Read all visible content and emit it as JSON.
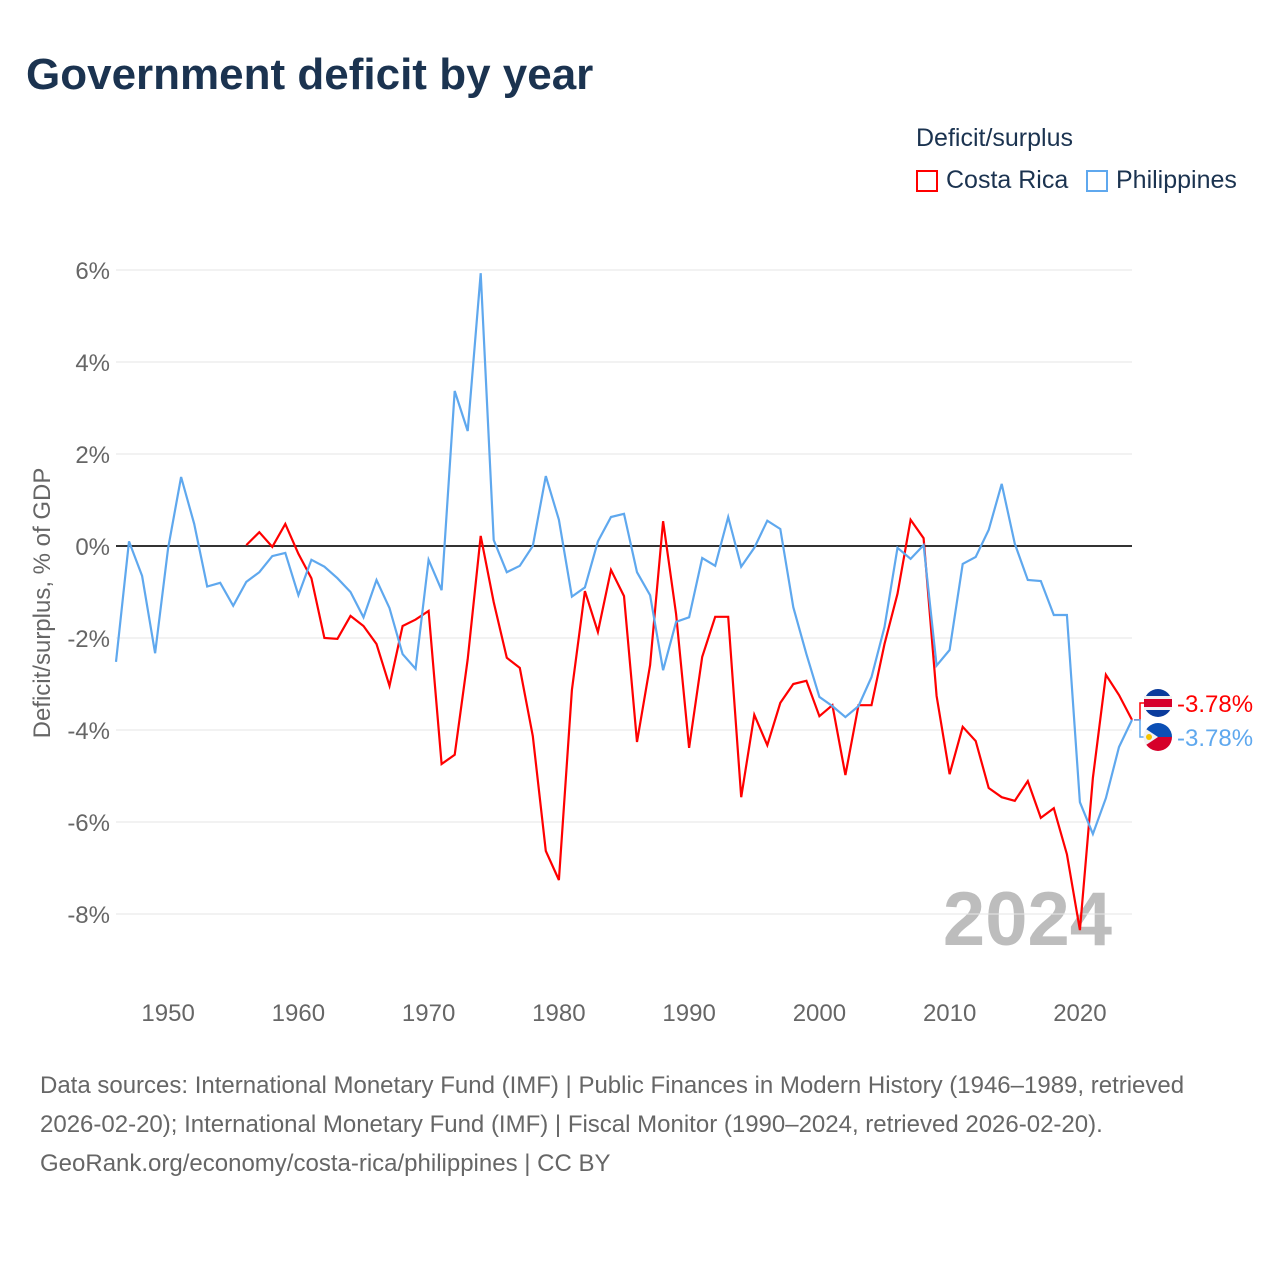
{
  "title": "Government deficit by year",
  "legend": {
    "title": "Deficit/surplus",
    "items": [
      {
        "name": "Costa Rica",
        "color": "#ff0000"
      },
      {
        "name": "Philippines",
        "color": "#5fa8ee"
      }
    ]
  },
  "chart_data": {
    "type": "line",
    "title": "Government deficit by year",
    "xlabel": "",
    "ylabel": "Deficit/surplus, % of GDP",
    "xlim": [
      1946,
      2024
    ],
    "ylim": [
      -9,
      6.5
    ],
    "yticks": [
      -8,
      -6,
      -4,
      -2,
      0,
      2,
      4,
      6
    ],
    "ytick_labels": [
      "-8%",
      "-6%",
      "-4%",
      "-2%",
      "0%",
      "2%",
      "4%",
      "6%"
    ],
    "xticks": [
      1950,
      1960,
      1970,
      1980,
      1990,
      2000,
      2010,
      2020
    ],
    "xtick_labels": [
      "1950",
      "1960",
      "1970",
      "1980",
      "1990",
      "2000",
      "2010",
      "2020"
    ],
    "grid": true,
    "legend_position": "top-right",
    "year_label": "2024",
    "series": [
      {
        "name": "Costa Rica",
        "color": "#ff0000",
        "start_year": 1956,
        "end_label": "-3.78%",
        "values": [
          0.02,
          0.3,
          -0.02,
          0.48,
          -0.17,
          -0.7,
          -2.0,
          -2.02,
          -1.52,
          -1.74,
          -2.13,
          -3.04,
          -1.74,
          -1.6,
          -1.41,
          -4.74,
          -4.54,
          -2.46,
          0.22,
          -1.22,
          -2.43,
          -2.65,
          -4.13,
          -6.63,
          -7.26,
          -3.13,
          -0.98,
          -1.87,
          -0.52,
          -1.09,
          -4.26,
          -2.59,
          0.54,
          -1.48,
          -4.39,
          -2.41,
          -1.54,
          -1.54,
          -5.46,
          -3.67,
          -4.33,
          -3.41,
          -3.0,
          -2.93,
          -3.7,
          -3.46,
          -4.98,
          -3.46,
          -3.46,
          -2.13,
          -1.04,
          0.57,
          0.17,
          -3.26,
          -4.96,
          -3.93,
          -4.24,
          -5.26,
          -5.46,
          -5.54,
          -5.11,
          -5.91,
          -5.7,
          -6.7,
          -8.35,
          -5.04,
          -2.8,
          -3.24,
          -3.78
        ]
      },
      {
        "name": "Philippines",
        "color": "#5fa8ee",
        "start_year": 1946,
        "end_label": "-3.78%",
        "values": [
          -2.52,
          0.1,
          -0.65,
          -2.33,
          -0.05,
          1.5,
          0.48,
          -0.88,
          -0.8,
          -1.3,
          -0.78,
          -0.57,
          -0.22,
          -0.15,
          -1.07,
          -0.3,
          -0.45,
          -0.7,
          -1.0,
          -1.55,
          -0.74,
          -1.35,
          -2.35,
          -2.67,
          -0.3,
          -0.96,
          3.37,
          2.5,
          5.93,
          0.13,
          -0.57,
          -0.43,
          0.0,
          1.52,
          0.57,
          -1.1,
          -0.9,
          0.1,
          0.63,
          0.7,
          -0.57,
          -1.07,
          -2.7,
          -1.65,
          -1.55,
          -0.26,
          -0.43,
          0.63,
          -0.45,
          -0.04,
          0.55,
          0.37,
          -1.33,
          -2.35,
          -3.28,
          -3.48,
          -3.72,
          -3.48,
          -2.85,
          -1.76,
          -0.04,
          -0.28,
          0.02,
          -2.6,
          -2.26,
          -0.39,
          -0.24,
          0.35,
          1.35,
          0.05,
          -0.74,
          -0.76,
          -1.5,
          -1.5,
          -5.57,
          -6.26,
          -5.48,
          -4.37,
          -3.78
        ]
      }
    ]
  },
  "footer": {
    "sources": "Data sources: International Monetary Fund (IMF) | Public Finances in Modern History (1946–1989, retrieved 2026-02-20); International Monetary Fund (IMF) | Fiscal Monitor (1990–2024, retrieved 2026-02-20).",
    "credit": "GeoRank.org/economy/costa-rica/philippines | CC BY"
  }
}
